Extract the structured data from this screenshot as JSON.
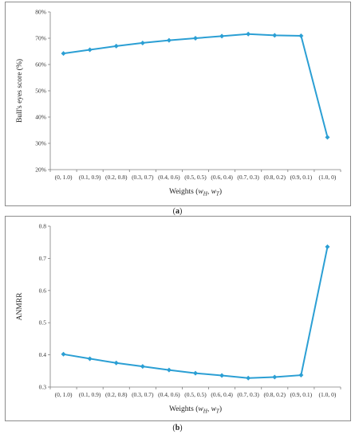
{
  "chart_data": [
    {
      "type": "line",
      "panel": "a",
      "categories": [
        "(0, 1.0)",
        "(0.1, 0.9)",
        "(0.2, 0.8)",
        "(0.3, 0.7)",
        "(0.4, 0.6)",
        "(0.5, 0.5)",
        "(0.6, 0.4)",
        "(0.7, 0.3)",
        "(0.8, 0.2)",
        "(0.9, 0.1)",
        "(1.0, 0)"
      ],
      "values": [
        64.2,
        65.6,
        67.0,
        68.2,
        69.2,
        70.0,
        70.8,
        71.6,
        71.1,
        70.9,
        32.3
      ],
      "ylabel": "Bull's eyes score (%)",
      "xlabel_main": "Weights (",
      "xlabel_w1": "w",
      "xlabel_sub1": "H",
      "xlabel_sep": ", ",
      "xlabel_w2": "w",
      "xlabel_sub2": "T",
      "xlabel_end": ")",
      "ylim": [
        20,
        80
      ],
      "yticks": [
        20,
        30,
        40,
        50,
        60,
        70,
        80
      ],
      "ytick_labels": [
        "20%",
        "30%",
        "40%",
        "50%",
        "60%",
        "70%",
        "80%"
      ],
      "grid": false,
      "color": "#2b9fd4"
    },
    {
      "type": "line",
      "panel": "b",
      "categories": [
        "(0, 1.0)",
        "(0.1, 0.9)",
        "(0.2, 0.8)",
        "(0.3, 0.7)",
        "(0.4, 0.6)",
        "(0.5, 0.5)",
        "(0.6, 0.4)",
        "(0.7, 0.3)",
        "(0.8, 0.2)",
        "(0.9, 0.1)",
        "(1.0, 0)"
      ],
      "values": [
        0.402,
        0.388,
        0.375,
        0.364,
        0.353,
        0.343,
        0.336,
        0.328,
        0.331,
        0.337,
        0.736
      ],
      "ylabel": "ANMRR",
      "xlabel_main": "Weights (",
      "xlabel_w1": "w",
      "xlabel_sub1": "H",
      "xlabel_sep": ", ",
      "xlabel_w2": "w",
      "xlabel_sub2": "T",
      "xlabel_end": ")",
      "ylim": [
        0.3,
        0.8
      ],
      "yticks": [
        0.3,
        0.4,
        0.5,
        0.6,
        0.7,
        0.8
      ],
      "ytick_labels": [
        "0.3",
        "0.4",
        "0.5",
        "0.6",
        "0.7",
        "0.8"
      ],
      "grid": false,
      "color": "#2b9fd4"
    }
  ],
  "captions": {
    "a_open": "(",
    "a_letter": "a",
    "a_close": ")",
    "b_open": "(",
    "b_letter": "b",
    "b_close": ")"
  }
}
